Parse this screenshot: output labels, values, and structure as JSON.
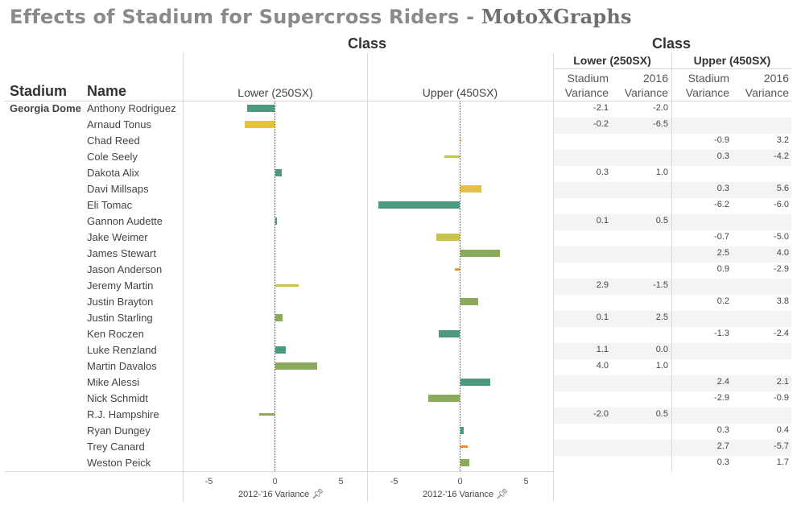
{
  "title": "Effects of Stadium for Supercross Riders - ",
  "brand": "MotoXGraphs",
  "header": {
    "class_label": "Class",
    "stadium_label": "Stadium",
    "name_label": "Name",
    "lower_label": "Lower (250SX)",
    "upper_label": "Upper (450SX)",
    "table_lower": "Lower (250SX)",
    "table_upper": "Upper (450SX)",
    "stadium_variance_l1": "Stadium",
    "stadium_variance_l2": "Variance",
    "year_variance_l1": "2016",
    "year_variance_l2": "Variance"
  },
  "stadium": "Georgia Dome",
  "axis": {
    "title": "2012-'16 Variance",
    "ticks": [
      -5,
      0,
      5
    ],
    "range": [
      -7,
      7
    ]
  },
  "colors": {
    "green": "#4e9a7e",
    "olive": "#8aab5c",
    "yellow": "#e5c13e",
    "lightyellow": "#c9c34a",
    "orange": "#e9913a"
  },
  "chart_data": {
    "type": "bar",
    "orientation": "horizontal",
    "series": [
      {
        "name": "Lower (250SX)"
      },
      {
        "name": "Upper (450SX)"
      }
    ],
    "rows": [
      {
        "name": "Anthony Rodriguez",
        "class": "lower",
        "bar": -2.1,
        "color": "green",
        "stadium_var": "-2.1",
        "year_var": "-2.0"
      },
      {
        "name": "Arnaud Tonus",
        "class": "lower",
        "bar": -2.3,
        "color": "yellow",
        "stadium_var": "-0.2",
        "year_var": "-6.5"
      },
      {
        "name": "Chad Reed",
        "class": "upper",
        "bar": 0.1,
        "color": "yellow",
        "stadium_var": "-0.9",
        "year_var": "3.2"
      },
      {
        "name": "Cole Seely",
        "class": "upper",
        "bar": -1.2,
        "color": "lightyellow",
        "stadium_var": "0.3",
        "year_var": "-4.2"
      },
      {
        "name": "Dakota Alix",
        "class": "lower",
        "bar": 0.5,
        "color": "green",
        "stadium_var": "0.3",
        "year_var": "1.0"
      },
      {
        "name": "Davi Millsaps",
        "class": "upper",
        "bar": 1.6,
        "color": "yellow",
        "stadium_var": "0.3",
        "year_var": "5.6"
      },
      {
        "name": "Eli Tomac",
        "class": "upper",
        "bar": -6.2,
        "color": "green",
        "stadium_var": "-6.2",
        "year_var": "-6.0"
      },
      {
        "name": "Gannon Audette",
        "class": "lower",
        "bar": 0.15,
        "color": "green",
        "stadium_var": "0.1",
        "year_var": "0.5"
      },
      {
        "name": "Jake Weimer",
        "class": "upper",
        "bar": -1.8,
        "color": "lightyellow",
        "stadium_var": "-0.7",
        "year_var": "-5.0"
      },
      {
        "name": "James Stewart",
        "class": "upper",
        "bar": 3.0,
        "color": "olive",
        "stadium_var": "2.5",
        "year_var": "4.0"
      },
      {
        "name": "Jason Anderson",
        "class": "upper",
        "bar": -0.4,
        "color": "orange",
        "stadium_var": "0.9",
        "year_var": "-2.9"
      },
      {
        "name": "Jeremy Martin",
        "class": "lower",
        "bar": 1.8,
        "color": "lightyellow",
        "stadium_var": "2.9",
        "year_var": "-1.5"
      },
      {
        "name": "Justin Brayton",
        "class": "upper",
        "bar": 1.4,
        "color": "olive",
        "stadium_var": "0.2",
        "year_var": "3.8"
      },
      {
        "name": "Justin Starling",
        "class": "lower",
        "bar": 0.6,
        "color": "olive",
        "stadium_var": "0.1",
        "year_var": "2.5"
      },
      {
        "name": "Ken Roczen",
        "class": "upper",
        "bar": -1.6,
        "color": "green",
        "stadium_var": "-1.3",
        "year_var": "-2.4"
      },
      {
        "name": "Luke Renzland",
        "class": "lower",
        "bar": 0.8,
        "color": "green",
        "stadium_var": "1.1",
        "year_var": "0.0"
      },
      {
        "name": "Martin Davalos",
        "class": "lower",
        "bar": 3.2,
        "color": "olive",
        "stadium_var": "4.0",
        "year_var": "1.0"
      },
      {
        "name": "Mike Alessi",
        "class": "upper",
        "bar": 2.3,
        "color": "green",
        "stadium_var": "2.4",
        "year_var": "2.1"
      },
      {
        "name": "Nick Schmidt",
        "class": "upper",
        "bar": -2.4,
        "color": "olive",
        "stadium_var": "-2.9",
        "year_var": "-0.9"
      },
      {
        "name": "R.J. Hampshire",
        "class": "lower",
        "bar": -1.2,
        "color": "olive",
        "stadium_var": "-2.0",
        "year_var": "0.5"
      },
      {
        "name": "Ryan Dungey",
        "class": "upper",
        "bar": 0.3,
        "color": "green",
        "stadium_var": "0.3",
        "year_var": "0.4"
      },
      {
        "name": "Trey Canard",
        "class": "upper",
        "bar": 0.6,
        "color": "orange",
        "stadium_var": "2.7",
        "year_var": "-5.7"
      },
      {
        "name": "Weston Peick",
        "class": "upper",
        "bar": 0.7,
        "color": "olive",
        "stadium_var": "0.3",
        "year_var": "1.7"
      }
    ]
  }
}
